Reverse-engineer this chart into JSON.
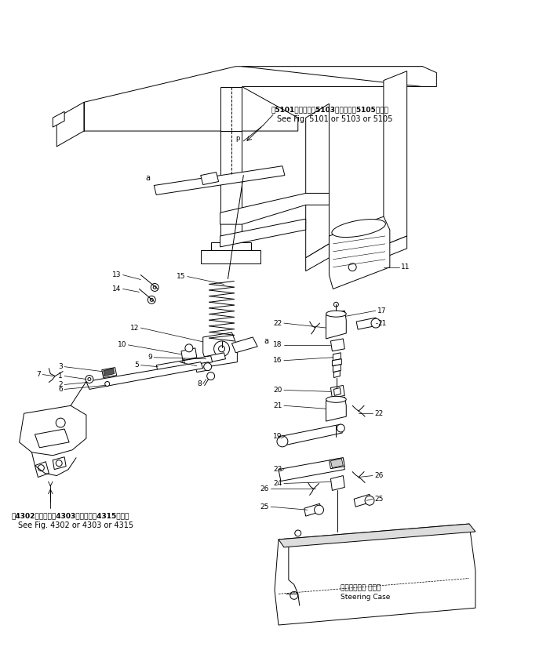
{
  "background_color": "#ffffff",
  "line_color": "#000000",
  "fig_width": 7.01,
  "fig_height": 8.48,
  "annotation_top_jp": "第5101図または第5103図または第5105図参照",
  "annotation_top_en": "See Fig. 5101 or 5103 or 5105",
  "annotation_bottom_jp": "第4302図または第4303図または第4315図参照",
  "annotation_bottom_en": "See Fig. 4302 or 4303 or 4315",
  "steering_case_jp": "ステアリング ケース",
  "steering_case_en": "Steering Case"
}
